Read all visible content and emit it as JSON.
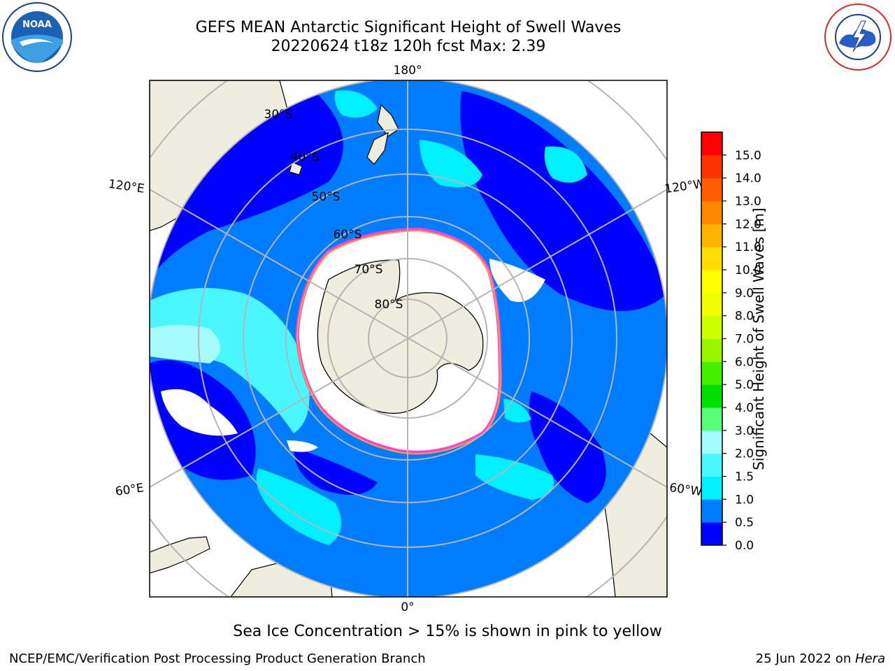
{
  "header": {
    "title_line1": "GEFS MEAN Antarctic Significant Height of Swell Waves",
    "title_line2": "20220624 t18z 120h fcst   Max: 2.39"
  },
  "logos": {
    "left": {
      "name": "noaa-logo",
      "text": "NOAA"
    },
    "right": {
      "name": "nws-logo",
      "text": "NATIONAL WEATHER SERVICE"
    }
  },
  "map": {
    "projection": "south-polar-stereographic",
    "longitude_labels": [
      "180°",
      "120°E",
      "120°W",
      "60°E",
      "60°W",
      "0°"
    ],
    "latitude_labels": [
      "30°S",
      "40°S",
      "50°S",
      "60°S",
      "70°S",
      "80°S"
    ],
    "colors": {
      "land": "#eeedde",
      "ice": "#ffffff",
      "ice_edge": [
        "#ff44cc",
        "#ffa040",
        "#ffee00"
      ],
      "grid": "#b5b5b5"
    }
  },
  "colorbar": {
    "label": "Significant Height of Swell Waves [m]",
    "ticks": [
      "0.0",
      "0.5",
      "1.0",
      "1.5",
      "2.0",
      "3.0",
      "4.0",
      "5.0",
      "6.0",
      "7.0",
      "8.0",
      "9.0",
      "10.0",
      "11.0",
      "12.0",
      "13.0",
      "14.0",
      "15.0"
    ],
    "colors": [
      "#0000ff",
      "#007dff",
      "#00f0ff",
      "#4bf7ff",
      "#a6fbff",
      "#55ff77",
      "#00e000",
      "#44ef00",
      "#99f500",
      "#ccff00",
      "#eeff00",
      "#ffff00",
      "#ffdd00",
      "#ffb300",
      "#ff8800",
      "#ff5e00",
      "#ff3300",
      "#ff0000"
    ]
  },
  "note": "Sea Ice Concentration > 15% is shown in pink to yellow",
  "footer": {
    "left": "NCEP/EMC/Verification Post Processing Product Generation Branch",
    "date": "25 Jun 2022 on ",
    "machine": "Hera"
  }
}
